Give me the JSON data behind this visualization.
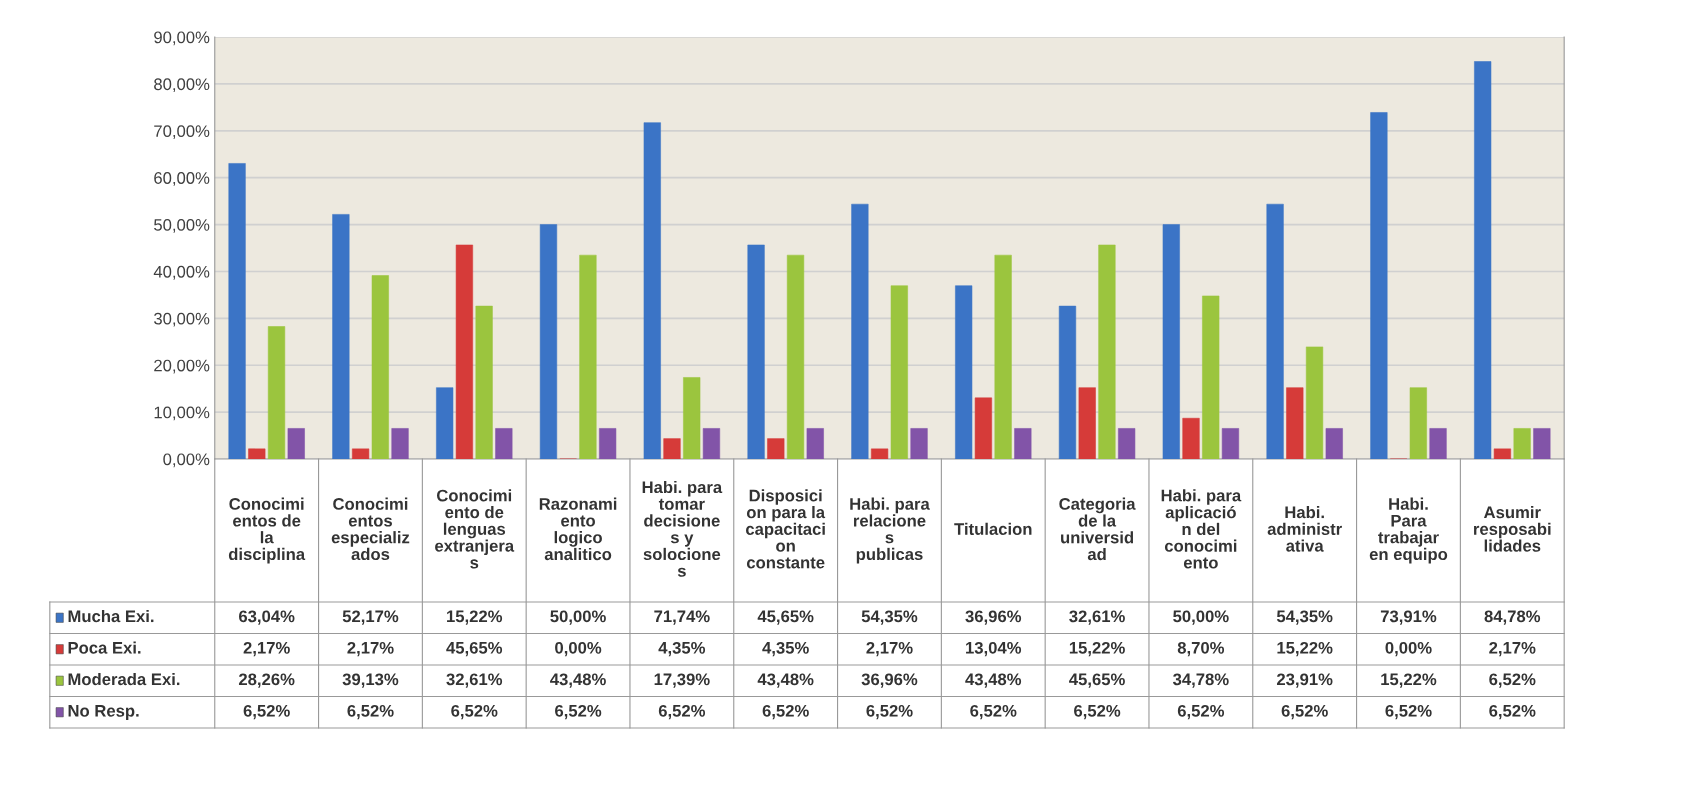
{
  "chart_data": {
    "type": "bar",
    "categories": [
      "Conocimi\nentos de\nla\ndisciplina",
      "Conocimi\nentos\nespecializ\nados",
      "Conocimi\nento de\nlenguas\nextranjera\ns",
      "Razonami\nento\nlogico\nanalitico",
      "Habi. para\ntomar\ndecisione\ns y\nsolocione\ns",
      "Disposici\non para la\ncapacitaci\non\nconstante",
      "Habi. para\nrelacione\ns\npublicas",
      "Titulacion",
      "Categoria\nde la\nuniversid\nad",
      "Habi. para\naplicació\nn del\nconocimi\nento",
      "Habi.\nadministr\nativa",
      "Habi.\nPara\ntrabajar\nen equipo",
      "Asumir\nresposabi\nlidades"
    ],
    "series": [
      {
        "name": "Mucha Exi.",
        "color": "#3b74c6",
        "values": [
          63.04,
          52.17,
          15.22,
          50.0,
          71.74,
          45.65,
          54.35,
          36.96,
          32.61,
          50.0,
          54.35,
          73.91,
          84.78
        ],
        "value_labels": [
          "63,04%",
          "52,17%",
          "15,22%",
          "50,00%",
          "71,74%",
          "45,65%",
          "54,35%",
          "36,96%",
          "32,61%",
          "50,00%",
          "54,35%",
          "73,91%",
          "84,78%"
        ]
      },
      {
        "name": "Poca Exi.",
        "color": "#d63b39",
        "values": [
          2.17,
          2.17,
          45.65,
          0.0,
          4.35,
          4.35,
          2.17,
          13.04,
          15.22,
          8.7,
          15.22,
          0.0,
          2.17
        ],
        "value_labels": [
          "2,17%",
          "2,17%",
          "45,65%",
          "0,00%",
          "4,35%",
          "4,35%",
          "2,17%",
          "13,04%",
          "15,22%",
          "8,70%",
          "15,22%",
          "0,00%",
          "2,17%"
        ]
      },
      {
        "name": "Moderada Exi.",
        "color": "#9bc53e",
        "values": [
          28.26,
          39.13,
          32.61,
          43.48,
          17.39,
          43.48,
          36.96,
          43.48,
          45.65,
          34.78,
          23.91,
          15.22,
          6.52
        ],
        "value_labels": [
          "28,26%",
          "39,13%",
          "32,61%",
          "43,48%",
          "17,39%",
          "43,48%",
          "36,96%",
          "43,48%",
          "45,65%",
          "34,78%",
          "23,91%",
          "15,22%",
          "6,52%"
        ]
      },
      {
        "name": "No Resp.",
        "color": "#8254a8",
        "values": [
          6.52,
          6.52,
          6.52,
          6.52,
          6.52,
          6.52,
          6.52,
          6.52,
          6.52,
          6.52,
          6.52,
          6.52,
          6.52
        ],
        "value_labels": [
          "6,52%",
          "6,52%",
          "6,52%",
          "6,52%",
          "6,52%",
          "6,52%",
          "6,52%",
          "6,52%",
          "6,52%",
          "6,52%",
          "6,52%",
          "6,52%",
          "6,52%"
        ]
      }
    ],
    "ylim": [
      0,
      90
    ],
    "yticks": [
      {
        "value": 0,
        "label": "0,00%"
      },
      {
        "value": 10,
        "label": "10,00%"
      },
      {
        "value": 20,
        "label": "20,00%"
      },
      {
        "value": 30,
        "label": "30,00%"
      },
      {
        "value": 40,
        "label": "40,00%"
      },
      {
        "value": 50,
        "label": "50,00%"
      },
      {
        "value": 60,
        "label": "60,00%"
      },
      {
        "value": 70,
        "label": "70,00%"
      },
      {
        "value": 80,
        "label": "80,00%"
      },
      {
        "value": 90,
        "label": "90,00%"
      }
    ],
    "grid": "y",
    "legend": "bottom"
  }
}
